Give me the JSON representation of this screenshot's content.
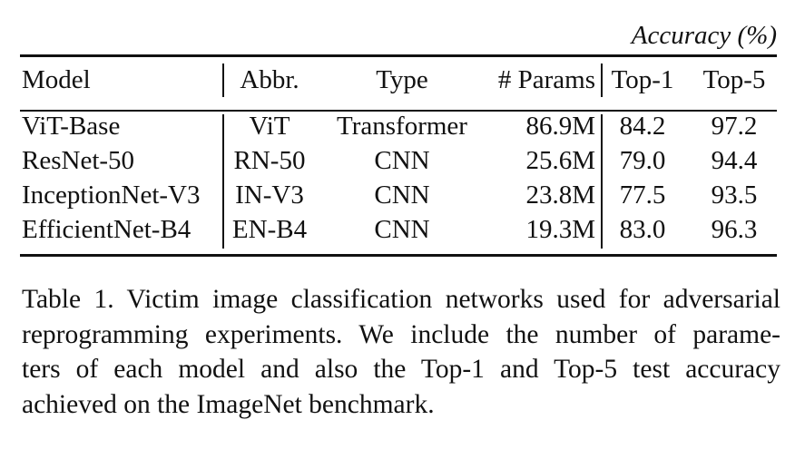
{
  "table": {
    "group_header": "Accuracy (%)",
    "columns": [
      "Model",
      "Abbr.",
      "Type",
      "# Params",
      "Top-1",
      "Top-5"
    ],
    "rows": [
      [
        "ViT-Base",
        "ViT",
        "Transformer",
        "86.9M",
        "84.2",
        "97.2"
      ],
      [
        "ResNet-50",
        "RN-50",
        "CNN",
        "25.6M",
        "79.0",
        "94.4"
      ],
      [
        "InceptionNet-V3",
        "IN-V3",
        "CNN",
        "23.8M",
        "77.5",
        "93.5"
      ],
      [
        "EfficientNet-B4",
        "EN-B4",
        "CNN",
        "19.3M",
        "83.0",
        "96.3"
      ]
    ]
  },
  "caption": {
    "lines": [
      "Table 1.  Victim image classification networks used for adversarial",
      "reprogramming experiments. We include the number of parame-",
      "ters of each model and also the Top-1 and Top-5 test accuracy",
      "achieved on the ImageNet benchmark."
    ]
  }
}
